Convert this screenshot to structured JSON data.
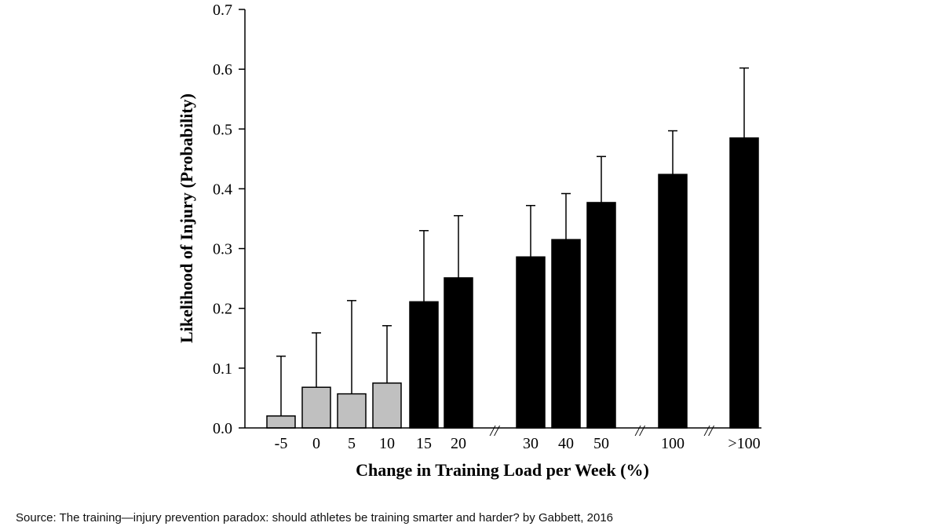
{
  "chart_data": {
    "type": "bar",
    "title": "",
    "xlabel": "Change in Training Load per Week (%)",
    "ylabel": "Likelihood of Injury (Probability)",
    "ylim": [
      0,
      0.7
    ],
    "yticks": [
      "0.0",
      "0.1",
      "0.2",
      "0.3",
      "0.4",
      "0.5",
      "0.6",
      "0.7"
    ],
    "categories": [
      "-5",
      "0",
      "5",
      "10",
      "15",
      "20",
      "30",
      "40",
      "50",
      "100",
      ">100"
    ],
    "values": [
      0.02,
      0.068,
      0.057,
      0.075,
      0.211,
      0.251,
      0.286,
      0.315,
      0.377,
      0.424,
      0.485
    ],
    "error_upper": [
      0.12,
      0.159,
      0.213,
      0.171,
      0.33,
      0.355,
      0.372,
      0.392,
      0.454,
      0.497,
      0.602
    ],
    "bar_colors": [
      "#c0c0c0",
      "#c0c0c0",
      "#c0c0c0",
      "#c0c0c0",
      "#000000",
      "#000000",
      "#000000",
      "#000000",
      "#000000",
      "#000000",
      "#000000"
    ],
    "axis_breaks_after": [
      "20",
      "50",
      "100"
    ],
    "axis_break_symbol": "//"
  },
  "source": "Source: The training—injury prevention paradox: should athletes be training smarter and harder? by Gabbett, 2016"
}
